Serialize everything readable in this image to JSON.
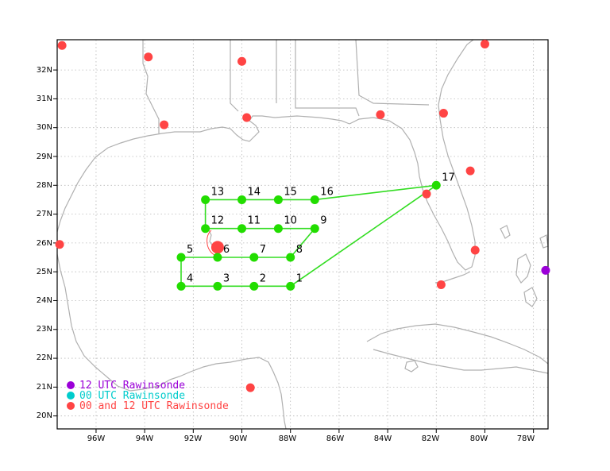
{
  "colors": {
    "background": "#ffffff",
    "coastline": "#b0b0b0",
    "grid": "#b8b8b8",
    "track": "#33dd22",
    "points": "#22dd00",
    "rawinsonde_12": "#9b00d8",
    "rawinsonde_00": "#00cccc",
    "rawinsonde_both": "#ff4444"
  },
  "axes": {
    "lon_labels": [
      "96W",
      "94W",
      "92W",
      "90W",
      "88W",
      "86W",
      "84W",
      "82W",
      "80W",
      "78W"
    ],
    "lat_labels": [
      "32N",
      "31N",
      "30N",
      "29N",
      "28N",
      "27N",
      "26N",
      "25N",
      "24N",
      "23N",
      "22N",
      "21N",
      "20N"
    ]
  },
  "legend": [
    {
      "label": "12 UTC Rawinsonde",
      "color_key": "rawinsonde_12"
    },
    {
      "label": "00 UTC Rawinsonde",
      "color_key": "rawinsonde_00"
    },
    {
      "label": "00 and 12 UTC Rawinsonde",
      "color_key": "rawinsonde_both"
    }
  ],
  "flight_points": [
    {
      "label": "1",
      "lon": -88.0,
      "lat": 24.5
    },
    {
      "label": "2",
      "lon": -89.5,
      "lat": 24.5
    },
    {
      "label": "3",
      "lon": -91.0,
      "lat": 24.5
    },
    {
      "label": "4",
      "lon": -92.5,
      "lat": 24.5
    },
    {
      "label": "5",
      "lon": -92.5,
      "lat": 25.5
    },
    {
      "label": "6",
      "lon": -91.0,
      "lat": 25.5
    },
    {
      "label": "7",
      "lon": -89.5,
      "lat": 25.5
    },
    {
      "label": "8",
      "lon": -88.0,
      "lat": 25.5
    },
    {
      "label": "9",
      "lon": -87.0,
      "lat": 26.5
    },
    {
      "label": "10",
      "lon": -88.5,
      "lat": 26.5
    },
    {
      "label": "11",
      "lon": -90.0,
      "lat": 26.5
    },
    {
      "label": "12",
      "lon": -91.5,
      "lat": 26.5
    },
    {
      "label": "13",
      "lon": -91.5,
      "lat": 27.5
    },
    {
      "label": "14",
      "lon": -90.0,
      "lat": 27.5
    },
    {
      "label": "15",
      "lon": -88.5,
      "lat": 27.5
    },
    {
      "label": "16",
      "lon": -87.0,
      "lat": 27.5
    },
    {
      "label": "17",
      "lon": -82.0,
      "lat": 28.0
    }
  ],
  "track_order": [
    "17",
    "1",
    "2",
    "3",
    "4",
    "5",
    "6",
    "7",
    "8",
    "9",
    "10",
    "11",
    "12",
    "13",
    "14",
    "15",
    "16",
    "17"
  ],
  "rawinsondes": [
    {
      "type": "both",
      "lon": -97.4,
      "lat": 32.85
    },
    {
      "type": "both",
      "lon": -93.85,
      "lat": 32.45
    },
    {
      "type": "both",
      "lon": -90.0,
      "lat": 32.3
    },
    {
      "type": "both",
      "lon": -80.0,
      "lat": 32.9
    },
    {
      "type": "both",
      "lon": -93.2,
      "lat": 30.1
    },
    {
      "type": "both",
      "lon": -89.8,
      "lat": 30.35
    },
    {
      "type": "both",
      "lon": -84.3,
      "lat": 30.45
    },
    {
      "type": "both",
      "lon": -81.7,
      "lat": 30.5
    },
    {
      "type": "both",
      "lon": -80.6,
      "lat": 28.5
    },
    {
      "type": "both",
      "lon": -82.4,
      "lat": 27.7
    },
    {
      "type": "both",
      "lon": -80.4,
      "lat": 25.75
    },
    {
      "type": "both",
      "lon": -81.8,
      "lat": 24.55
    },
    {
      "type": "both",
      "lon": -97.5,
      "lat": 25.95
    },
    {
      "type": "both",
      "lon": -89.65,
      "lat": 20.98
    },
    {
      "type": "both",
      "lon": -91.0,
      "lat": 25.85
    },
    {
      "type": "12",
      "lon": -77.5,
      "lat": 25.05
    }
  ]
}
